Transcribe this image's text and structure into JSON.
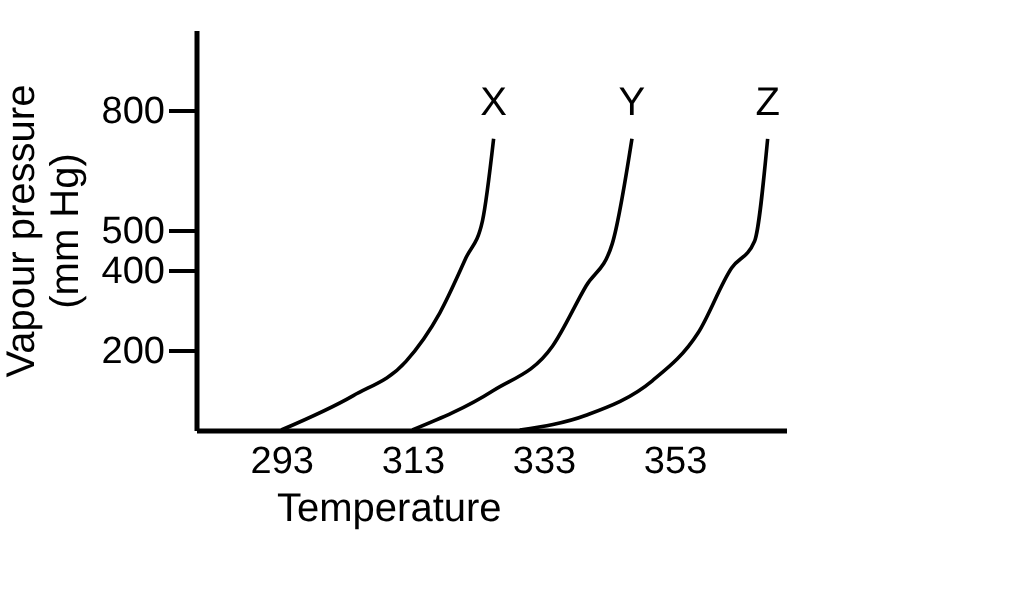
{
  "chart_data": {
    "type": "line",
    "xlabel": "Temperature",
    "ylabel": "Vapour pressure\n(mm Hg)",
    "xlim": [
      280,
      370
    ],
    "xticks": [
      293,
      313,
      333,
      353
    ],
    "ylim": [
      0,
      1000
    ],
    "yticks": [
      200,
      400,
      500,
      800
    ],
    "grid": false,
    "legend": false,
    "marker": "none",
    "line_style": "solid",
    "series": [
      {
        "name": "X",
        "color": "#000000",
        "x": [
          293,
          304,
          312,
          317.2,
          321.2,
          323.7,
          325.4
        ],
        "values": [
          0,
          86,
          171,
          293,
          431,
          523,
          728
        ]
      },
      {
        "name": "Y",
        "color": "#000000",
        "x": [
          313,
          325.3,
          334.4,
          339.5,
          343.5,
          346.5
        ],
        "values": [
          0,
          98,
          210,
          360,
          466,
          728
        ]
      },
      {
        "name": "Z",
        "color": "#000000",
        "x": [
          329.4,
          339.5,
          349.6,
          356.6,
          361.7,
          365.2,
          367.2
        ],
        "values": [
          0,
          37,
          123,
          243,
          405,
          472,
          728
        ]
      }
    ]
  }
}
